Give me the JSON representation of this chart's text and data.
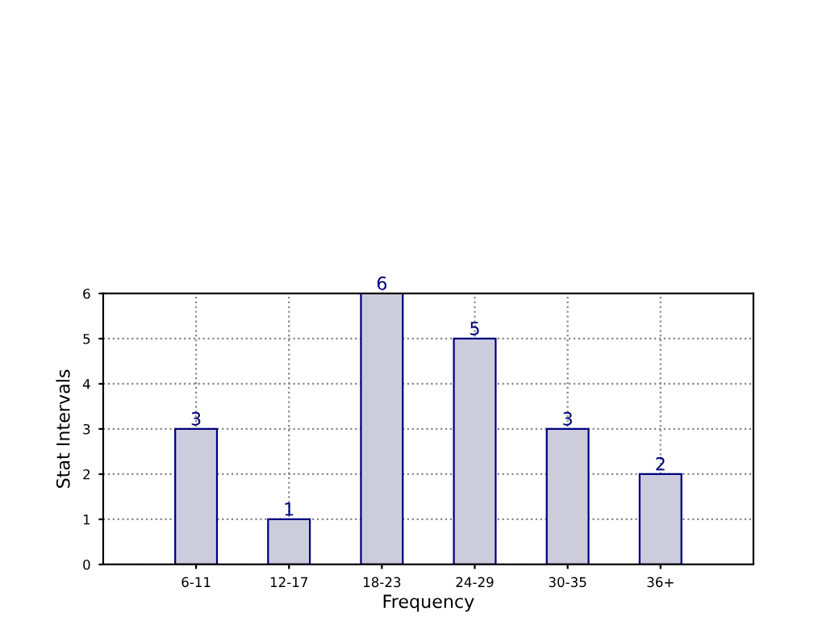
{
  "chart_data": {
    "type": "bar",
    "xlabel": "Frequency",
    "ylabel": "Stat Intervals",
    "categories": [
      "6-11",
      "12-17",
      "18-23",
      "24-29",
      "30-35",
      "36+"
    ],
    "values": [
      3,
      1,
      6,
      5,
      3,
      2
    ],
    "color": "#ccccdd",
    "ylim": [
      0,
      6
    ],
    "yticks": [
      0,
      1,
      2,
      3,
      4,
      5,
      6
    ],
    "grid": true,
    "data_labels": true
  }
}
